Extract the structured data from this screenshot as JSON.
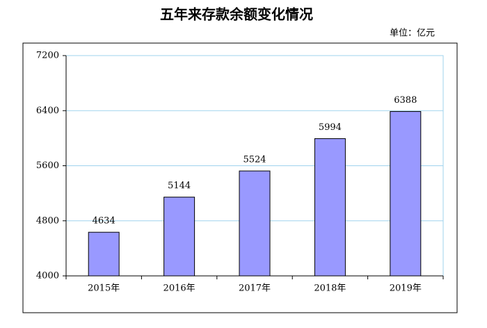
{
  "chart_data": {
    "type": "bar",
    "title": "五年来存款余额变化情况",
    "unit_label": "单位：亿元",
    "categories": [
      "2015年",
      "2016年",
      "2017年",
      "2018年",
      "2019年"
    ],
    "values": [
      4634,
      5144,
      5524,
      5994,
      6388
    ],
    "color": "#9999ff",
    "ylim": [
      4000,
      7200
    ],
    "yticks": [
      4000,
      4800,
      5600,
      6400,
      7200
    ],
    "grid": true
  }
}
